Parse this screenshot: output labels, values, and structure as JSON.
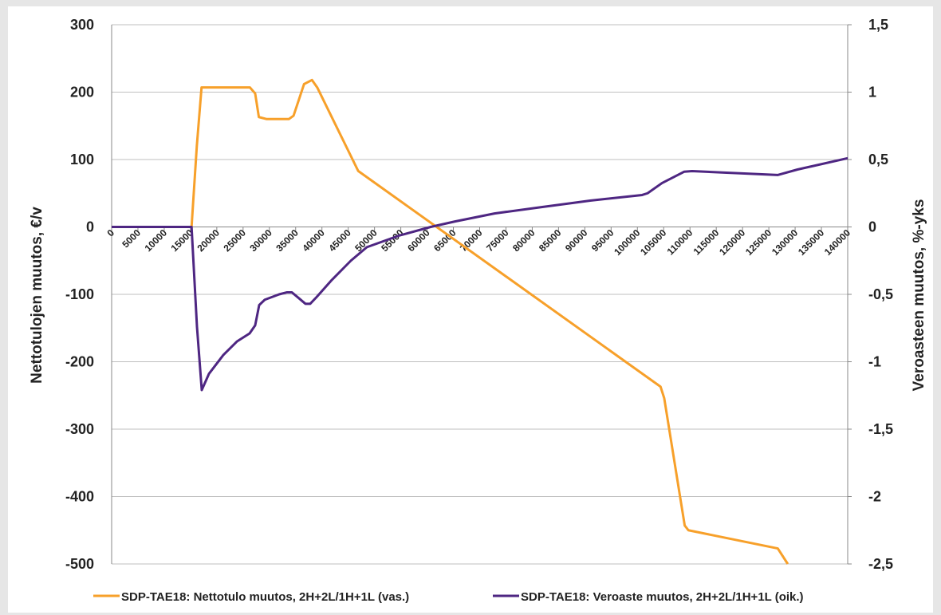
{
  "chart_data": {
    "type": "line",
    "y_label": "Nettotulojen muutos, €/v",
    "y2_label": "Veroasteen muutos, %-yks",
    "xlim": [
      0,
      140000
    ],
    "xticks": [
      0,
      5000,
      10000,
      15000,
      20000,
      25000,
      30000,
      35000,
      40000,
      45000,
      50000,
      55000,
      60000,
      65000,
      70000,
      75000,
      80000,
      85000,
      90000,
      95000,
      100000,
      105000,
      110000,
      115000,
      120000,
      125000,
      130000,
      135000,
      140000
    ],
    "ylim": [
      -500,
      300
    ],
    "yticks": [
      -500,
      -400,
      -300,
      -200,
      -100,
      0,
      100,
      200,
      300
    ],
    "y2lim": [
      -2.5,
      1.5
    ],
    "y2ticks": [
      {
        "value": -2.5,
        "label": "-2,5"
      },
      -2,
      {
        "value": -1.5,
        "label": "-1,5"
      },
      -1,
      {
        "value": -0.5,
        "label": "-0,5"
      },
      0,
      {
        "value": 0.5,
        "label": "0,5"
      },
      1,
      {
        "value": 1.5,
        "label": "1,5"
      }
    ],
    "grid": true,
    "legend": "bottom",
    "series": [
      {
        "name": "SDP-TAE18: Nettotulo muutos, 2H+2L/1H+1L (vas.)",
        "color": "#f7a02a",
        "axis": "y",
        "x": [
          0,
          15200,
          16200,
          17100,
          26300,
          27300,
          28000,
          29500,
          33700,
          34600,
          36600,
          38100,
          39100,
          46900,
          104400,
          105100,
          109000,
          109700,
          126700,
          128600
        ],
        "values": [
          0,
          0,
          120,
          207,
          207,
          198,
          163,
          160,
          160,
          165,
          212,
          218,
          207,
          83,
          -237,
          -254,
          -443,
          -450,
          -477,
          -500
        ]
      },
      {
        "name": "SDP-TAE18: Veroaste muutos, 2H+2L/1H+1L (oik.)",
        "color": "#4e2682",
        "axis": "y2",
        "x": [
          0,
          15200,
          16230,
          17140,
          18500,
          21240,
          23820,
          26240,
          27300,
          28060,
          29130,
          31860,
          33370,
          34280,
          35650,
          36860,
          37770,
          38990,
          41720,
          45510,
          48540,
          54610,
          60680,
          65230,
          72820,
          81920,
          91020,
          100900,
          101940,
          104670,
          108920,
          110400,
          126670,
          130460,
          140000
        ],
        "values": [
          0,
          0,
          -0.74,
          -1.21,
          -1.09,
          -0.95,
          -0.85,
          -0.79,
          -0.73,
          -0.58,
          -0.54,
          -0.5,
          -0.485,
          -0.485,
          -0.53,
          -0.57,
          -0.57,
          -0.52,
          -0.4,
          -0.25,
          -0.15,
          -0.065,
          0,
          0.04,
          0.1,
          0.148,
          0.195,
          0.237,
          0.25,
          0.325,
          0.41,
          0.414,
          0.385,
          0.426,
          0.51
        ]
      }
    ]
  }
}
